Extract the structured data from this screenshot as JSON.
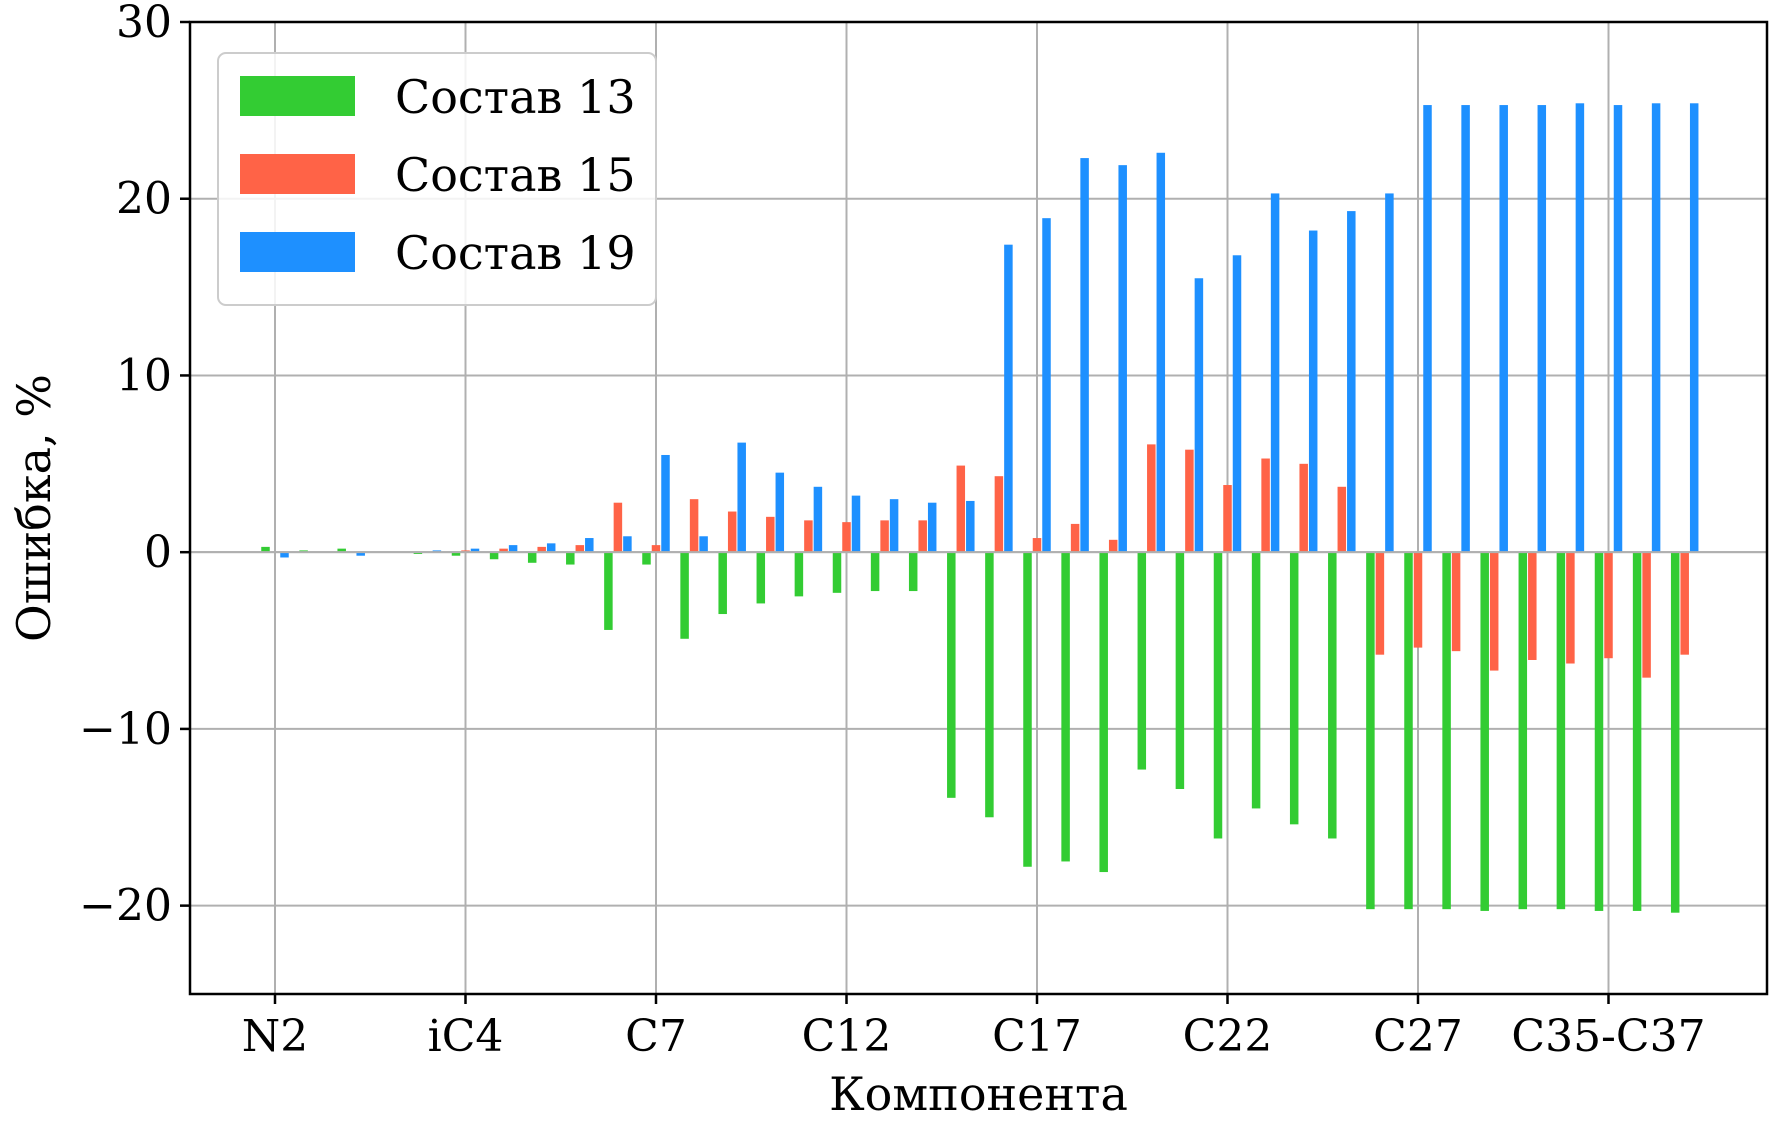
{
  "chart_data": {
    "type": "bar",
    "xlabel": "Компонента",
    "ylabel": "Ошибка, %",
    "ylim": [
      -25,
      30
    ],
    "yticks": [
      -20,
      -10,
      0,
      10,
      20,
      30
    ],
    "ytick_labels": [
      "−20",
      "−10",
      "0",
      "10",
      "20",
      "30"
    ],
    "xticks": [
      {
        "index": 0,
        "label": "N2"
      },
      {
        "index": 5,
        "label": "iC4"
      },
      {
        "index": 10,
        "label": "C7"
      },
      {
        "index": 15,
        "label": "C12"
      },
      {
        "index": 20,
        "label": "C17"
      },
      {
        "index": 25,
        "label": "C22"
      },
      {
        "index": 30,
        "label": "C27"
      },
      {
        "index": 35,
        "label": "C35-C37"
      }
    ],
    "n_categories": 38,
    "grid": true,
    "legend_position": "top-left",
    "series": [
      {
        "name": "Состав 13",
        "color": "#33cc33",
        "values": [
          0.3,
          0.1,
          0.2,
          0.0,
          -0.1,
          -0.2,
          -0.4,
          -0.6,
          -0.7,
          -4.4,
          -0.7,
          -4.9,
          -3.5,
          -2.9,
          -2.5,
          -2.3,
          -2.2,
          -2.2,
          -13.9,
          -15.0,
          -17.8,
          -17.5,
          -18.1,
          -12.3,
          -13.4,
          -16.2,
          -14.5,
          -15.4,
          -16.2,
          -20.2,
          -20.2,
          -20.2,
          -20.3,
          -20.2,
          -20.2,
          -20.3,
          -20.3,
          -20.4
        ]
      },
      {
        "name": "Состав 15",
        "color": "#ff6347",
        "values": [
          0.0,
          0.0,
          0.0,
          0.0,
          0.0,
          0.1,
          0.2,
          0.3,
          0.4,
          2.8,
          0.4,
          3.0,
          2.3,
          2.0,
          1.8,
          1.7,
          1.8,
          1.8,
          4.9,
          4.3,
          0.8,
          1.6,
          0.7,
          6.1,
          5.8,
          3.8,
          5.3,
          5.0,
          3.7,
          -5.8,
          -5.4,
          -5.6,
          -6.7,
          -6.1,
          -6.3,
          -6.0,
          -7.1,
          -5.8
        ]
      },
      {
        "name": "Состав 19",
        "color": "#1e90ff",
        "values": [
          -0.3,
          0.0,
          -0.2,
          0.0,
          0.1,
          0.2,
          0.4,
          0.5,
          0.8,
          0.9,
          5.5,
          0.9,
          6.2,
          4.5,
          3.7,
          3.2,
          3.0,
          2.8,
          2.9,
          17.4,
          18.9,
          22.3,
          21.9,
          22.6,
          15.5,
          16.8,
          20.3,
          18.2,
          19.3,
          20.3,
          25.3,
          25.3,
          25.3,
          25.3,
          25.4,
          25.3,
          25.4,
          25.4
        ]
      }
    ]
  }
}
